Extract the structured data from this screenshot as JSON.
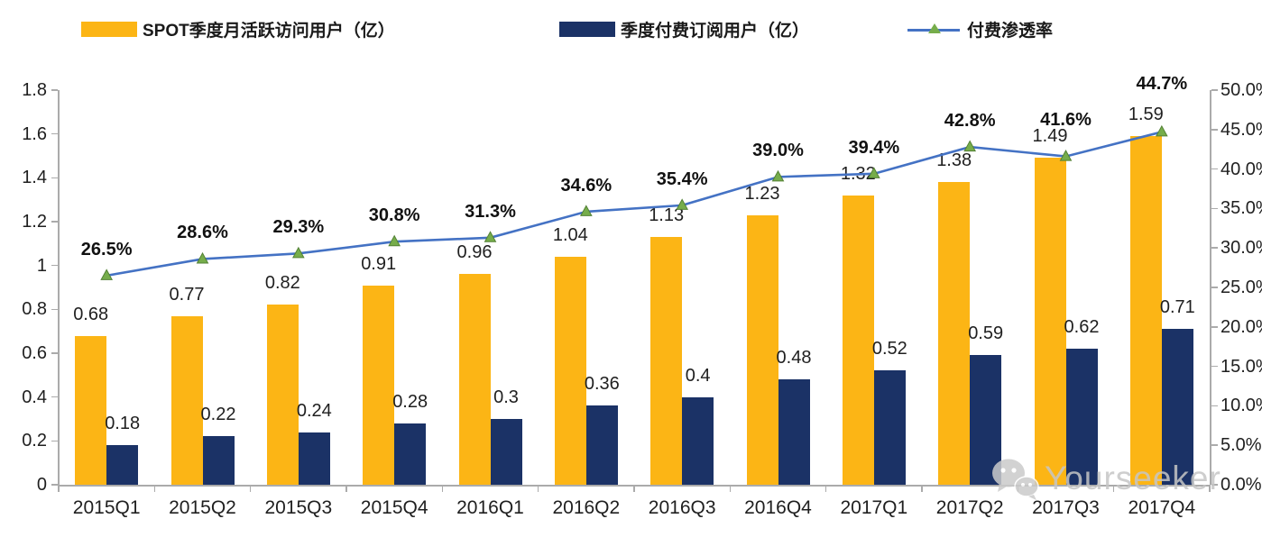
{
  "chart_data": {
    "type": "bar",
    "subtype": "grouped-bars-with-line-combo",
    "title": "",
    "categories": [
      "2015Q1",
      "2015Q2",
      "2015Q3",
      "2015Q4",
      "2016Q1",
      "2016Q2",
      "2016Q3",
      "2016Q4",
      "2017Q1",
      "2017Q2",
      "2017Q3",
      "2017Q4"
    ],
    "series": [
      {
        "name": "SPOT季度月活跃访问用户（亿）",
        "type": "bar",
        "axis": "left",
        "color": "#FCB515",
        "values": [
          0.68,
          0.77,
          0.82,
          0.91,
          0.96,
          1.04,
          1.13,
          1.23,
          1.32,
          1.38,
          1.49,
          1.59
        ],
        "labels": [
          "0.68",
          "0.77",
          "0.82",
          "0.91",
          "0.96",
          "1.04",
          "1.13",
          "1.23",
          "1.32",
          "1.38",
          "1.49",
          "1.59"
        ]
      },
      {
        "name": "季度付费订阅用户（亿）",
        "type": "bar",
        "axis": "left",
        "color": "#1B3266",
        "values": [
          0.18,
          0.22,
          0.24,
          0.28,
          0.3,
          0.36,
          0.4,
          0.48,
          0.52,
          0.59,
          0.62,
          0.71
        ],
        "labels": [
          "0.18",
          "0.22",
          "0.24",
          "0.28",
          "0.3",
          "0.36",
          "0.4",
          "0.48",
          "0.52",
          "0.59",
          "0.62",
          "0.71"
        ]
      },
      {
        "name": "付费渗透率",
        "type": "line",
        "axis": "right",
        "color": "#4472C4",
        "marker_color": "#76AD4B",
        "marker_edge": "#538135",
        "values": [
          26.5,
          28.6,
          29.3,
          30.8,
          31.3,
          34.6,
          35.4,
          39.0,
          39.4,
          42.8,
          41.6,
          44.7
        ],
        "labels": [
          "26.5%",
          "28.6%",
          "29.3%",
          "30.8%",
          "31.3%",
          "34.6%",
          "35.4%",
          "39.0%",
          "39.4%",
          "42.8%",
          "41.6%",
          "44.7%"
        ]
      }
    ],
    "left_axis": {
      "min": 0,
      "max": 1.8,
      "step": 0.2,
      "ticks": [
        "0",
        "0.2",
        "0.4",
        "0.6",
        "0.8",
        "1",
        "1.2",
        "1.4",
        "1.6",
        "1.8"
      ]
    },
    "right_axis": {
      "min": 0,
      "max": 50,
      "step": 5,
      "ticks": [
        "0.0%",
        "5.0%",
        "10.0%",
        "15.0%",
        "20.0%",
        "25.0%",
        "30.0%",
        "35.0%",
        "40.0%",
        "45.0%",
        "50.0%"
      ]
    },
    "grid": false,
    "legend_position": "top",
    "axis_color": "#ABABAB"
  },
  "watermark": {
    "text": "Yourseeker",
    "icon": "wechat-icon"
  }
}
